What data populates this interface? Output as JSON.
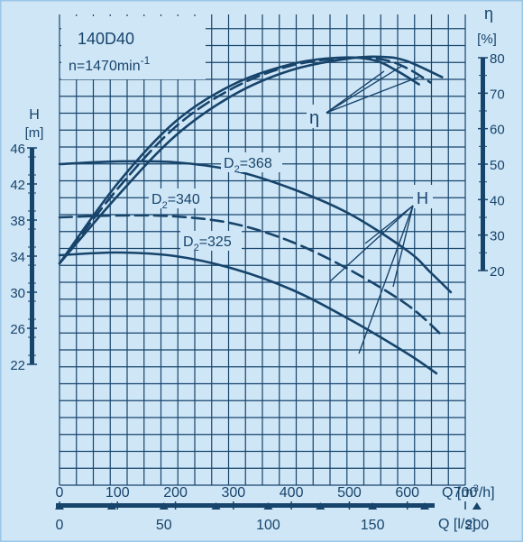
{
  "colors": {
    "ink": "#17446b",
    "background": "#cfe6f7",
    "border": "#9cc6e6"
  },
  "chart_data": {
    "type": "line",
    "title": "140D40",
    "subtitle": "n=1470min-1",
    "title_parts": {
      "speed": "n=1470min",
      "exponent": "-1"
    },
    "grid": true,
    "x_axis_flow_m3h": {
      "label": "Q [m³/h]",
      "label_parts": {
        "q": "Q",
        "unit_open": "[m",
        "sup": "3",
        "unit_close": "/h]"
      },
      "range": [
        0,
        700
      ],
      "ticks": [
        "0",
        "100",
        "200",
        "300",
        "400",
        "500",
        "600",
        "700"
      ]
    },
    "x_axis_flow_ls": {
      "label": "Q [l/s]",
      "range": [
        0,
        194.4
      ],
      "ticks": [
        "0",
        "50",
        "100",
        "150",
        "200"
      ]
    },
    "y_axis_head": {
      "label": "H [m]",
      "label_parts": {
        "symbol": "H",
        "unit": "[m]"
      },
      "range": [
        22,
        46
      ],
      "ticks": [
        "22",
        "26",
        "30",
        "34",
        "38",
        "42",
        "46"
      ]
    },
    "y_axis_efficiency": {
      "label": "η [%]",
      "label_parts": {
        "symbol": "η",
        "unit": "[%]"
      },
      "range": [
        20,
        80
      ],
      "ticks": [
        "20",
        "30",
        "40",
        "50",
        "60",
        "70",
        "80"
      ]
    },
    "head_curves": [
      {
        "name": "D2=368",
        "label_sub": "2",
        "label_value": "=368",
        "style": "solid",
        "points": [
          [
            0,
            44.2
          ],
          [
            100,
            44.5
          ],
          [
            200,
            44.4
          ],
          [
            300,
            43.5
          ],
          [
            400,
            41.5
          ],
          [
            500,
            38.7
          ],
          [
            600,
            34.6
          ],
          [
            640,
            32.2
          ],
          [
            675,
            30.0
          ]
        ]
      },
      {
        "name": "D2=340",
        "label_sub": "2",
        "label_value": "=340",
        "style": "dashed",
        "points": [
          [
            0,
            38.3
          ],
          [
            100,
            38.5
          ],
          [
            200,
            38.4
          ],
          [
            300,
            37.6
          ],
          [
            400,
            35.6
          ],
          [
            500,
            32.5
          ],
          [
            600,
            28.6
          ],
          [
            660,
            25.2
          ]
        ]
      },
      {
        "name": "D2=325",
        "label_sub": "2",
        "label_value": "=325",
        "style": "solid",
        "points": [
          [
            0,
            34.1
          ],
          [
            100,
            34.4
          ],
          [
            200,
            34.0
          ],
          [
            300,
            32.6
          ],
          [
            400,
            30.3
          ],
          [
            500,
            27.0
          ],
          [
            600,
            23.2
          ],
          [
            650,
            21.0
          ]
        ]
      }
    ],
    "efficiency_curves": [
      {
        "diameter": "368",
        "style": "solid",
        "points": [
          [
            0,
            22
          ],
          [
            100,
            41
          ],
          [
            200,
            58
          ],
          [
            300,
            69.5
          ],
          [
            400,
            76.5
          ],
          [
            500,
            79.8
          ],
          [
            560,
            80.2
          ],
          [
            600,
            79.0
          ],
          [
            660,
            74.5
          ]
        ]
      },
      {
        "diameter": "340",
        "style": "dashed",
        "points": [
          [
            0,
            22
          ],
          [
            100,
            43
          ],
          [
            200,
            60.5
          ],
          [
            300,
            71.5
          ],
          [
            400,
            77.8
          ],
          [
            500,
            80.0
          ],
          [
            560,
            79.4
          ],
          [
            600,
            77.0
          ],
          [
            640,
            73.0
          ]
        ]
      },
      {
        "diameter": "325",
        "style": "solid",
        "points": [
          [
            0,
            22
          ],
          [
            100,
            44.5
          ],
          [
            200,
            62
          ],
          [
            300,
            72.5
          ],
          [
            400,
            78.2
          ],
          [
            480,
            80.0
          ],
          [
            540,
            79.4
          ],
          [
            580,
            76.5
          ],
          [
            620,
            72.5
          ]
        ]
      }
    ],
    "annotations": [
      {
        "text": "η",
        "target": "efficiency curves"
      },
      {
        "text": "H",
        "target": "head curves"
      }
    ]
  }
}
